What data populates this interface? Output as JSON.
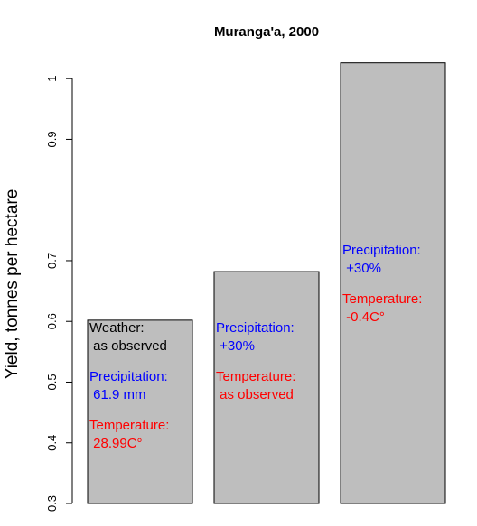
{
  "chart_data": {
    "type": "bar",
    "title": "Muranga'a, 2000",
    "ylabel": "Yield, tonnes per hectare",
    "xlabel": "",
    "ylim": [
      0.3,
      1.03
    ],
    "yticks": [
      0.3,
      0.4,
      0.5,
      0.6,
      0.7,
      0.9,
      1
    ],
    "ytick_labels": [
      "0.3",
      "0.4",
      "0.5",
      "0.6",
      "0.7",
      "0.9",
      "1"
    ],
    "values": [
      0.602,
      0.682,
      1.026
    ],
    "bar_color": "#bebebe",
    "bar_annotations": [
      [
        {
          "lines": [
            "Weather:",
            " as observed"
          ],
          "color": "#000000"
        },
        {
          "lines": [
            "Precipitation:",
            " 61.9 mm"
          ],
          "color": "#0000ff"
        },
        {
          "lines": [
            "Temperature:",
            " 28.99C°"
          ],
          "color": "#ff0000"
        }
      ],
      [
        {
          "lines": [
            "Precipitation:",
            " +30%"
          ],
          "color": "#0000ff"
        },
        {
          "lines": [
            "Temperature:",
            " as observed"
          ],
          "color": "#ff0000"
        }
      ],
      [
        {
          "lines": [
            "Precipitation:",
            " +30%"
          ],
          "color": "#0000ff"
        },
        {
          "lines": [
            "Temperature:",
            " -0.4C°"
          ],
          "color": "#ff0000"
        }
      ]
    ]
  }
}
